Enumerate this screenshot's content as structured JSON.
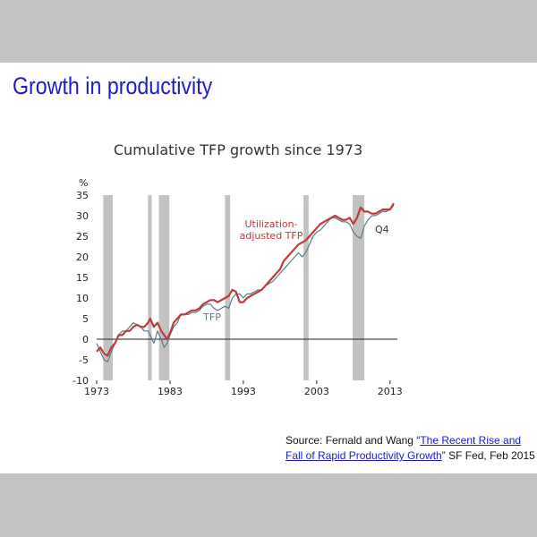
{
  "slide": {
    "title": "Growth in productivity",
    "source": {
      "prefix": "Source: Fernald and Wang ",
      "open_quote": "“",
      "link_text": "The Recent Rise and Fall of Rapid Productivity Growth",
      "close_quote": "”",
      "suffix": " SF Fed, Feb 2015"
    }
  },
  "chart_data": {
    "type": "line",
    "title": "Cumulative TFP growth since 1973",
    "ylabel": "%",
    "xlabel": "",
    "xlim": [
      1973,
      2014
    ],
    "ylim": [
      -10,
      35
    ],
    "yticks": [
      -10,
      -5,
      0,
      5,
      10,
      15,
      20,
      25,
      30,
      35
    ],
    "xticks": [
      1973,
      1983,
      1993,
      2003,
      2013
    ],
    "grid": false,
    "zero_line": true,
    "recessions": [
      [
        1973.9,
        1975.2
      ],
      [
        1980.0,
        1980.5
      ],
      [
        1981.5,
        1982.9
      ],
      [
        1990.5,
        1991.2
      ],
      [
        2001.2,
        2001.9
      ],
      [
        2007.9,
        2009.5
      ]
    ],
    "annotations": [
      "Q4"
    ],
    "colors": {
      "utilization": "#c0393b",
      "tfp": "#5a7b8c",
      "recession": "#c2c2c2",
      "title": "#1d1dc8",
      "link": "#1a1ad8"
    },
    "series": [
      {
        "name": "Utilization-\nadjusted TFP",
        "points": [
          [
            1973,
            -3
          ],
          [
            1973.5,
            -2
          ],
          [
            1974,
            -3.5
          ],
          [
            1974.5,
            -4
          ],
          [
            1975,
            -2
          ],
          [
            1975.5,
            -1
          ],
          [
            1976,
            1
          ],
          [
            1976.5,
            1
          ],
          [
            1977,
            2
          ],
          [
            1977.5,
            2
          ],
          [
            1978,
            3
          ],
          [
            1978.5,
            3.5
          ],
          [
            1979,
            3
          ],
          [
            1979.5,
            3
          ],
          [
            1980,
            4
          ],
          [
            1980.3,
            5
          ],
          [
            1980.8,
            3
          ],
          [
            1981.3,
            4
          ],
          [
            1981.8,
            2
          ],
          [
            1982.2,
            1
          ],
          [
            1982.6,
            0
          ],
          [
            1983,
            1.5
          ],
          [
            1983.5,
            4
          ],
          [
            1984,
            5
          ],
          [
            1984.5,
            6
          ],
          [
            1985,
            6
          ],
          [
            1985.5,
            6.5
          ],
          [
            1986,
            7
          ],
          [
            1986.5,
            7
          ],
          [
            1987,
            7.5
          ],
          [
            1987.5,
            8.5
          ],
          [
            1988,
            9
          ],
          [
            1988.5,
            9.5
          ],
          [
            1989,
            9.5
          ],
          [
            1989.5,
            9
          ],
          [
            1990,
            9.5
          ],
          [
            1990.5,
            10
          ],
          [
            1991,
            10.5
          ],
          [
            1991.5,
            12
          ],
          [
            1992,
            11.5
          ],
          [
            1992.5,
            9
          ],
          [
            1993,
            9
          ],
          [
            1993.5,
            10
          ],
          [
            1994,
            10.5
          ],
          [
            1994.5,
            11
          ],
          [
            1995,
            11.5
          ],
          [
            1995.5,
            12
          ],
          [
            1996,
            13
          ],
          [
            1996.5,
            14
          ],
          [
            1997,
            15
          ],
          [
            1997.5,
            16
          ],
          [
            1998,
            17
          ],
          [
            1998.5,
            19
          ],
          [
            1999,
            20
          ],
          [
            1999.5,
            21
          ],
          [
            2000,
            22
          ],
          [
            2000.5,
            23
          ],
          [
            2001,
            23.5
          ],
          [
            2001.5,
            24
          ],
          [
            2002,
            25
          ],
          [
            2002.5,
            26
          ],
          [
            2003,
            27
          ],
          [
            2003.5,
            28
          ],
          [
            2004,
            28.5
          ],
          [
            2004.5,
            29
          ],
          [
            2005,
            29.5
          ],
          [
            2005.5,
            30
          ],
          [
            2006,
            29.5
          ],
          [
            2006.5,
            29
          ],
          [
            2007,
            29
          ],
          [
            2007.5,
            29.5
          ],
          [
            2008,
            28
          ],
          [
            2008.5,
            29.5
          ],
          [
            2009,
            32
          ],
          [
            2009.5,
            31
          ],
          [
            2010,
            31
          ],
          [
            2010.5,
            30.5
          ],
          [
            2011,
            30.5
          ],
          [
            2011.5,
            31
          ],
          [
            2012,
            31.5
          ],
          [
            2012.5,
            31.5
          ],
          [
            2013,
            31.5
          ],
          [
            2013.5,
            33
          ]
        ]
      },
      {
        "name": "TFP",
        "points": [
          [
            1973,
            -1
          ],
          [
            1973.5,
            -3
          ],
          [
            1974,
            -5
          ],
          [
            1974.5,
            -5.5
          ],
          [
            1975,
            -3
          ],
          [
            1975.5,
            -1
          ],
          [
            1976,
            1
          ],
          [
            1976.5,
            2
          ],
          [
            1977,
            2
          ],
          [
            1977.5,
            3
          ],
          [
            1978,
            4
          ],
          [
            1978.5,
            3.5
          ],
          [
            1979,
            3
          ],
          [
            1979.5,
            2
          ],
          [
            1980,
            2
          ],
          [
            1980.3,
            1
          ],
          [
            1980.8,
            -1
          ],
          [
            1981.3,
            2
          ],
          [
            1981.8,
            0
          ],
          [
            1982.2,
            -2
          ],
          [
            1982.6,
            -1
          ],
          [
            1983,
            1
          ],
          [
            1983.5,
            3
          ],
          [
            1984,
            4
          ],
          [
            1984.5,
            6
          ],
          [
            1985,
            6
          ],
          [
            1985.5,
            6
          ],
          [
            1986,
            6.5
          ],
          [
            1986.5,
            6.5
          ],
          [
            1987,
            7
          ],
          [
            1987.5,
            8
          ],
          [
            1988,
            8.5
          ],
          [
            1988.5,
            8.5
          ],
          [
            1989,
            7.5
          ],
          [
            1989.5,
            7
          ],
          [
            1990,
            7.5
          ],
          [
            1990.5,
            8
          ],
          [
            1991,
            7.5
          ],
          [
            1991.5,
            10
          ],
          [
            1992,
            11
          ],
          [
            1992.5,
            11
          ],
          [
            1993,
            10
          ],
          [
            1993.5,
            11
          ],
          [
            1994,
            11
          ],
          [
            1994.5,
            11.5
          ],
          [
            1995,
            12
          ],
          [
            1995.5,
            12
          ],
          [
            1996,
            13
          ],
          [
            1996.5,
            13.5
          ],
          [
            1997,
            14
          ],
          [
            1997.5,
            15
          ],
          [
            1998,
            16
          ],
          [
            1998.5,
            17
          ],
          [
            1999,
            18
          ],
          [
            1999.5,
            19
          ],
          [
            2000,
            20
          ],
          [
            2000.5,
            21
          ],
          [
            2001,
            20
          ],
          [
            2001.5,
            21
          ],
          [
            2002,
            23
          ],
          [
            2002.5,
            25
          ],
          [
            2003,
            26
          ],
          [
            2003.5,
            26.5
          ],
          [
            2004,
            27.5
          ],
          [
            2004.5,
            28.5
          ],
          [
            2005,
            29.5
          ],
          [
            2005.5,
            29.5
          ],
          [
            2006,
            29
          ],
          [
            2006.5,
            28.5
          ],
          [
            2007,
            28.5
          ],
          [
            2007.5,
            28
          ],
          [
            2008,
            26
          ],
          [
            2008.5,
            25
          ],
          [
            2009,
            24.5
          ],
          [
            2009.5,
            27.5
          ],
          [
            2010,
            29
          ],
          [
            2010.5,
            30
          ],
          [
            2011,
            30
          ],
          [
            2011.5,
            30.5
          ],
          [
            2012,
            31
          ],
          [
            2012.5,
            31
          ],
          [
            2013,
            31.5
          ],
          [
            2013.5,
            32.5
          ]
        ]
      }
    ]
  }
}
